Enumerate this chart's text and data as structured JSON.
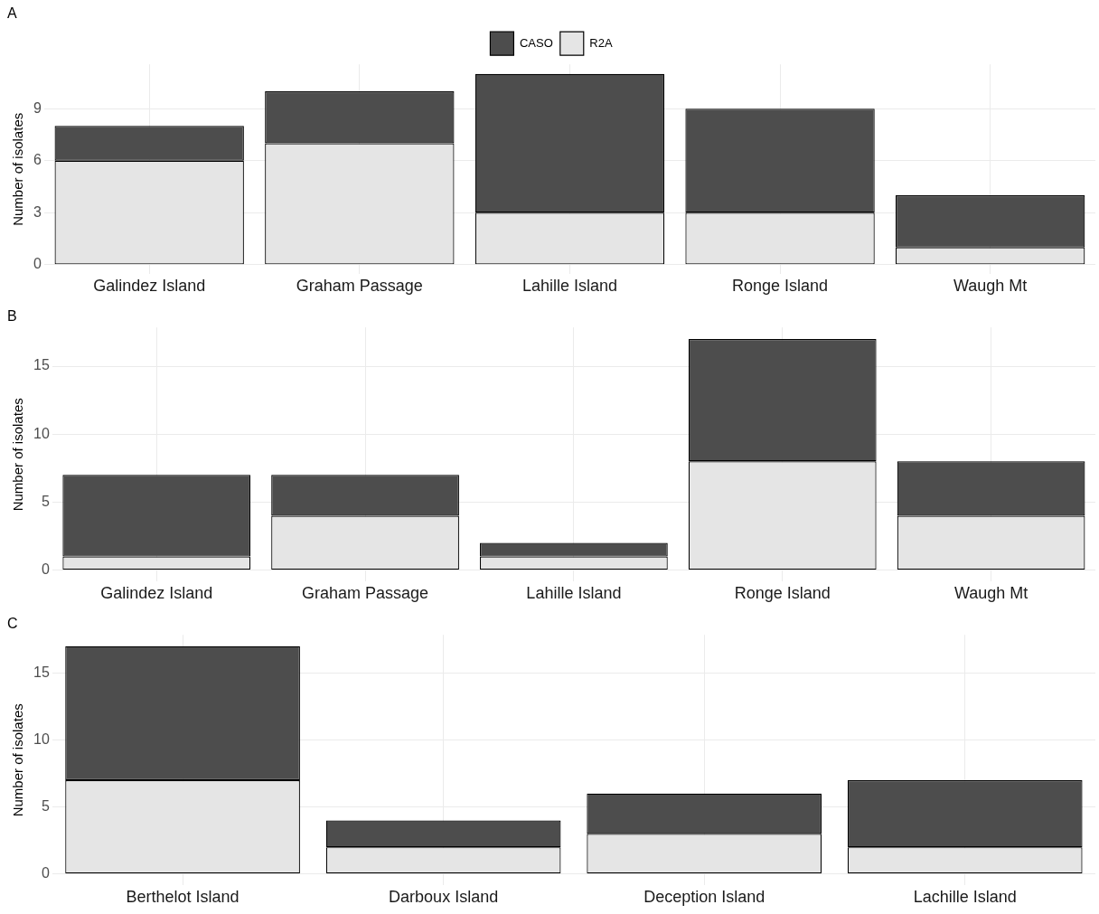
{
  "chart_data": [
    {
      "type": "bar",
      "title": "A",
      "ylabel": "Number of isolates",
      "categories": [
        "Galindez Island",
        "Graham Passage",
        "Lahille Island",
        "Ronge Island",
        "Waugh Mt"
      ],
      "stacked": true,
      "legend": "top",
      "grid": true,
      "ylim": [
        -0.55,
        11.55
      ],
      "yticks": [
        0,
        3,
        6,
        9
      ],
      "series": [
        {
          "name": "R2A",
          "color": "#e5e5e5",
          "values": [
            6,
            7,
            3,
            3,
            1
          ]
        },
        {
          "name": "CASO",
          "color": "#4d4d4d",
          "values": [
            2,
            3,
            8,
            6,
            3
          ]
        }
      ]
    },
    {
      "type": "bar",
      "title": "B",
      "ylabel": "Number of isolates",
      "categories": [
        "Galindez Island",
        "Graham Passage",
        "Lahille Island",
        "Ronge Island",
        "Waugh Mt"
      ],
      "stacked": true,
      "grid": true,
      "ylim": [
        -0.85,
        17.85
      ],
      "yticks": [
        0,
        5,
        10,
        15
      ],
      "series": [
        {
          "color": "#e5e5e5",
          "values": [
            1,
            4,
            1,
            8,
            4
          ]
        },
        {
          "color": "#4d4d4d",
          "values": [
            6,
            3,
            1,
            9,
            4
          ]
        }
      ]
    },
    {
      "type": "bar",
      "title": "C",
      "ylabel": "Number of isolates",
      "categories": [
        "Berthelot Island",
        "Darboux Island",
        "Deception Island",
        "Lachille Island"
      ],
      "stacked": true,
      "grid": true,
      "ylim": [
        -0.85,
        17.85
      ],
      "yticks": [
        0,
        5,
        10,
        15
      ],
      "series": [
        {
          "color": "#e5e5e5",
          "values": [
            7,
            2,
            3,
            2
          ]
        },
        {
          "color": "#4d4d4d",
          "values": [
            10,
            2,
            3,
            5
          ]
        }
      ]
    }
  ]
}
